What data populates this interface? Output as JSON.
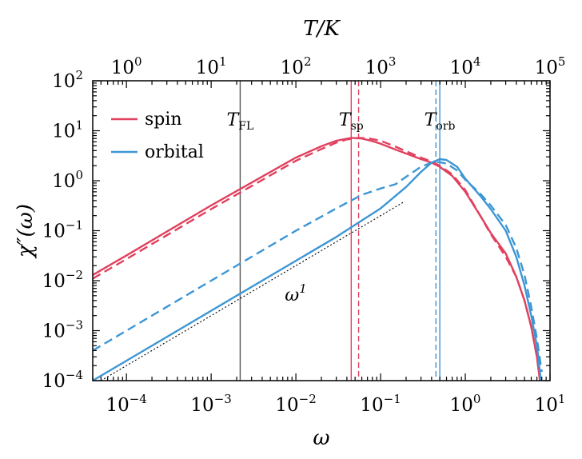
{
  "chart_data": {
    "type": "line",
    "xscale": "log",
    "yscale": "log",
    "xlim": [
      4e-05,
      10
    ],
    "ylim": [
      0.0001,
      100
    ],
    "xlabel": "ω",
    "ylabel": "χ″(ω)",
    "top_axis": {
      "label": "T/K",
      "scale": "log",
      "lim": [
        0.4,
        100000
      ],
      "ticks": [
        {
          "base": "10",
          "exp": "0",
          "value": 1
        },
        {
          "base": "10",
          "exp": "1",
          "value": 10
        },
        {
          "base": "10",
          "exp": "2",
          "value": 100
        },
        {
          "base": "10",
          "exp": "3",
          "value": 1000
        },
        {
          "base": "10",
          "exp": "4",
          "value": 10000
        },
        {
          "base": "10",
          "exp": "5",
          "value": 100000
        }
      ]
    },
    "x_ticks": [
      {
        "base": "10",
        "exp": "−4",
        "value": 0.0001
      },
      {
        "base": "10",
        "exp": "−3",
        "value": 0.001
      },
      {
        "base": "10",
        "exp": "−2",
        "value": 0.01
      },
      {
        "base": "10",
        "exp": "−1",
        "value": 0.1
      },
      {
        "base": "10",
        "exp": "0",
        "value": 1
      },
      {
        "base": "10",
        "exp": "1",
        "value": 10
      }
    ],
    "y_ticks": [
      {
        "base": "10",
        "exp": "−4",
        "value": 0.0001
      },
      {
        "base": "10",
        "exp": "−3",
        "value": 0.001
      },
      {
        "base": "10",
        "exp": "−2",
        "value": 0.01
      },
      {
        "base": "10",
        "exp": "−1",
        "value": 0.1
      },
      {
        "base": "10",
        "exp": "0",
        "value": 1
      },
      {
        "base": "10",
        "exp": "1",
        "value": 10
      },
      {
        "base": "10",
        "exp": "2",
        "value": 100
      }
    ],
    "legend": {
      "placement": "upper-left",
      "entries": [
        {
          "label": "spin",
          "color": "#e0415e"
        },
        {
          "label": "orbital",
          "color": "#3d96d4"
        }
      ]
    },
    "series": [
      {
        "name": "spin",
        "style": "solid",
        "color": "#e0415e",
        "x": [
          4e-05,
          0.0001,
          0.001,
          0.01,
          0.02,
          0.03,
          0.045,
          0.06,
          0.08,
          0.1,
          0.15,
          0.2,
          0.3,
          0.4,
          0.5,
          0.7,
          1.0,
          1.5,
          2.0,
          3.0,
          4.0,
          5.0,
          6.0,
          7.0,
          7.6
        ],
        "y": [
          0.013,
          0.032,
          0.32,
          2.9,
          4.9,
          6.3,
          7.2,
          7.0,
          6.2,
          5.5,
          4.2,
          3.5,
          2.7,
          2.3,
          1.9,
          1.25,
          0.6,
          0.2,
          0.09,
          0.035,
          0.012,
          0.004,
          0.0012,
          0.0003,
          0.0001
        ]
      },
      {
        "name": "spin",
        "style": "dashed",
        "color": "#e0415e",
        "x": [
          4e-05,
          0.0001,
          0.001,
          0.01,
          0.02,
          0.03,
          0.04,
          0.055,
          0.07,
          0.1,
          0.15,
          0.2,
          0.3,
          0.4,
          0.5,
          0.7,
          1.0,
          1.5,
          2.0,
          3.0,
          4.0,
          5.0,
          6.0,
          7.0,
          7.6
        ],
        "y": [
          0.011,
          0.027,
          0.27,
          2.5,
          4.3,
          5.8,
          6.7,
          7.2,
          7.1,
          6.3,
          4.8,
          3.9,
          2.9,
          2.4,
          2.0,
          1.35,
          0.65,
          0.2,
          0.085,
          0.03,
          0.012,
          0.004,
          0.0012,
          0.0003,
          0.0001
        ]
      },
      {
        "name": "orbital",
        "style": "solid",
        "color": "#3d96d4",
        "x": [
          4e-05,
          0.0001,
          0.001,
          0.01,
          0.03,
          0.1,
          0.2,
          0.3,
          0.4,
          0.5,
          0.6,
          0.8,
          1.0,
          1.5,
          2.0,
          3.0,
          4.0,
          5.0,
          6.0,
          7.0,
          7.8
        ],
        "y": [
          0.0001,
          0.00025,
          0.0025,
          0.025,
          0.075,
          0.28,
          0.75,
          1.5,
          2.3,
          2.7,
          2.6,
          1.9,
          1.1,
          0.5,
          0.27,
          0.1,
          0.03,
          0.008,
          0.002,
          0.0005,
          0.0001
        ]
      },
      {
        "name": "orbital",
        "style": "dashed",
        "color": "#3d96d4",
        "x": [
          4e-05,
          0.0001,
          0.001,
          0.01,
          0.03,
          0.06,
          0.1,
          0.15,
          0.2,
          0.3,
          0.4,
          0.5,
          0.6,
          0.8,
          1.0,
          1.5,
          2.0,
          3.0,
          4.0,
          5.0,
          6.0,
          7.0,
          8.0
        ],
        "y": [
          0.0004,
          0.001,
          0.01,
          0.1,
          0.28,
          0.52,
          0.7,
          0.85,
          1.2,
          1.9,
          2.3,
          2.35,
          2.2,
          1.6,
          1.05,
          0.55,
          0.32,
          0.13,
          0.045,
          0.013,
          0.003,
          0.0007,
          0.00015
        ]
      }
    ],
    "reference_line": {
      "label_base": "ω",
      "label_exp": "1",
      "style": "dotted",
      "color": "#000000",
      "x": [
        5e-05,
        0.19
      ],
      "y": [
        0.0001,
        0.38
      ]
    },
    "vlines": [
      {
        "label_base": "T",
        "label_sub": "FL",
        "x": 0.0022,
        "style": "solid",
        "color": "#555555",
        "show_label": true
      },
      {
        "label_base": "T",
        "label_sub": "sp",
        "x": 0.045,
        "style": "solid",
        "color": "#e0415e",
        "show_label": true
      },
      {
        "label_base": "T",
        "label_sub": "sp",
        "x": 0.055,
        "style": "dashed",
        "color": "#e0415e",
        "show_label": false
      },
      {
        "label_base": "T",
        "label_sub": "orb",
        "x": 0.45,
        "style": "dashed",
        "color": "#3d96d4",
        "show_label": false
      },
      {
        "label_base": "T",
        "label_sub": "orb",
        "x": 0.5,
        "style": "solid",
        "color": "#3d96d4",
        "show_label": true
      }
    ]
  }
}
